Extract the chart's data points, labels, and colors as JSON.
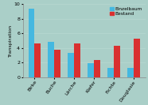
{
  "categories": [
    "Birke",
    "Buche",
    "Lärche",
    "Kiefer",
    "Fichte",
    "Douglasie"
  ],
  "einzelbaum": [
    9.4,
    4.85,
    3.3,
    1.9,
    1.3,
    1.3
  ],
  "bestand": [
    4.65,
    3.75,
    4.65,
    2.35,
    4.35,
    5.25
  ],
  "color_einzelbaum": "#45b8e0",
  "color_bestand": "#d93030",
  "background_color": "#aacfc8",
  "ylabel": "Transpiration",
  "ylim": [
    0,
    10
  ],
  "yticks": [
    0,
    2,
    4,
    6,
    8,
    10
  ],
  "legend_einzelbaum": "Einzelbaum",
  "legend_bestand": "Bestand",
  "grid_color": "#b8d8d2",
  "tick_fontsize": 4.5,
  "ylabel_fontsize": 4.5,
  "legend_fontsize": 4.2
}
